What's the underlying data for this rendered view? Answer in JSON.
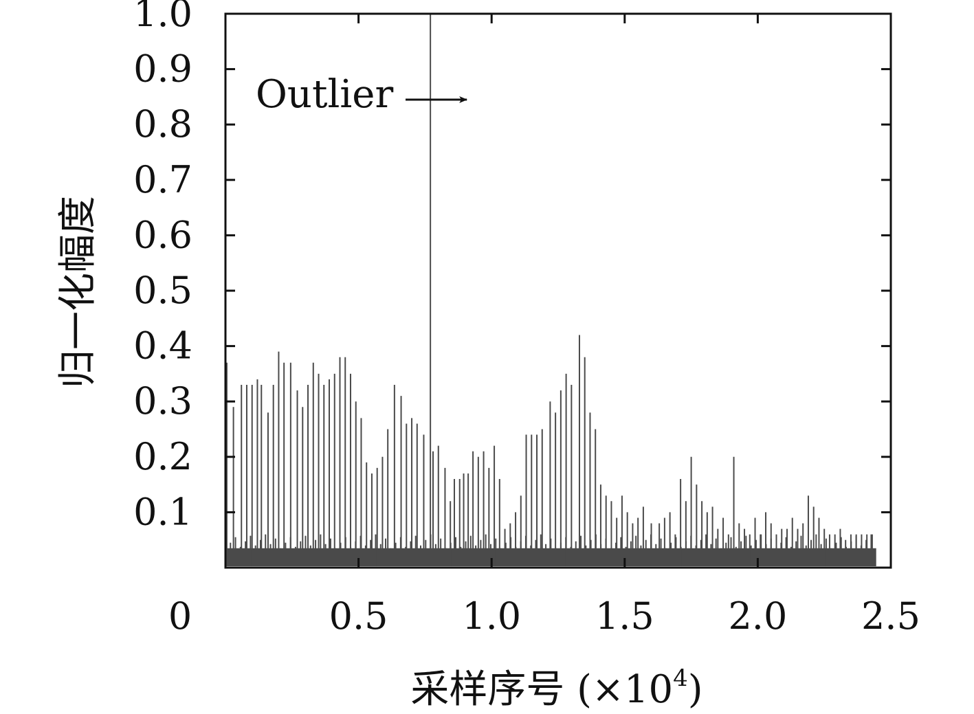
{
  "chart_data": {
    "type": "line",
    "title": "",
    "xlabel": "采样序号 (×10",
    "xlabel_exp": "4",
    "xlabel_close": ")",
    "ylabel": "归一化幅度",
    "xlim": [
      0,
      2.5
    ],
    "ylim": [
      0,
      1.0
    ],
    "x_ticks": [
      0,
      0.5,
      1.0,
      1.5,
      2.0,
      2.5
    ],
    "x_tick_labels": [
      "0",
      "0.5",
      "1.0",
      "1.5",
      "2.0",
      "2.5"
    ],
    "y_ticks": [
      0.1,
      0.2,
      0.3,
      0.4,
      0.5,
      0.6,
      0.7,
      0.8,
      0.9,
      1.0
    ],
    "y_tick_labels": [
      "0.1",
      "0.2",
      "0.3",
      "0.4",
      "0.5",
      "0.6",
      "0.7",
      "0.8",
      "0.9",
      "1.0"
    ],
    "grid": false,
    "line_color": "#4a4a4a",
    "baseline_band": [
      0.0,
      0.035
    ],
    "data_x_end": 2.445,
    "annotation": {
      "text": "Outlier",
      "x": 0.912,
      "y": 0.85
    },
    "series": [
      {
        "x": [
          0.005,
          0.03,
          0.06,
          0.08,
          0.1,
          0.12,
          0.135,
          0.16,
          0.18,
          0.2,
          0.22,
          0.245,
          0.27,
          0.29,
          0.31,
          0.33,
          0.35,
          0.37,
          0.39,
          0.41,
          0.43,
          0.45,
          0.47,
          0.49,
          0.51,
          0.53,
          0.55,
          0.57,
          0.59,
          0.61,
          0.635,
          0.66,
          0.68,
          0.7,
          0.72,
          0.745,
          0.77,
          0.78,
          0.8,
          0.825,
          0.845,
          0.86,
          0.88,
          0.895,
          0.912,
          0.93,
          0.95,
          0.97,
          0.99,
          1.01,
          1.03,
          1.05,
          1.07,
          1.09,
          1.11,
          1.13,
          1.15,
          1.17,
          1.19,
          1.22,
          1.24,
          1.26,
          1.28,
          1.3,
          1.33,
          1.35,
          1.37,
          1.39,
          1.41,
          1.43,
          1.45,
          1.47,
          1.49,
          1.51,
          1.53,
          1.55,
          1.57,
          1.6,
          1.63,
          1.65,
          1.67,
          1.69,
          1.71,
          1.73,
          1.75,
          1.77,
          1.79,
          1.81,
          1.83,
          1.85,
          1.87,
          1.89,
          1.91,
          1.93,
          1.95,
          1.97,
          1.99,
          2.01,
          2.03,
          2.05,
          2.07,
          2.09,
          2.11,
          2.13,
          2.15,
          2.17,
          2.19,
          2.21,
          2.23,
          2.25,
          2.27,
          2.29,
          2.31,
          2.33,
          2.35,
          2.37,
          2.39,
          2.41,
          2.43
        ],
        "values": [
          0.37,
          0.29,
          0.33,
          0.33,
          0.33,
          0.34,
          0.33,
          0.28,
          0.33,
          0.39,
          0.37,
          0.37,
          0.32,
          0.29,
          0.33,
          0.37,
          0.35,
          0.33,
          0.34,
          0.35,
          0.38,
          0.38,
          0.35,
          0.3,
          0.27,
          0.19,
          0.17,
          0.18,
          0.2,
          0.25,
          0.33,
          0.31,
          0.26,
          0.27,
          0.26,
          0.24,
          1.0,
          0.21,
          0.22,
          0.18,
          0.12,
          0.16,
          0.16,
          0.17,
          0.17,
          0.21,
          0.2,
          0.21,
          0.18,
          0.22,
          0.16,
          0.07,
          0.08,
          0.1,
          0.13,
          0.24,
          0.24,
          0.24,
          0.25,
          0.3,
          0.28,
          0.32,
          0.35,
          0.33,
          0.42,
          0.38,
          0.28,
          0.25,
          0.15,
          0.13,
          0.12,
          0.09,
          0.13,
          0.1,
          0.08,
          0.09,
          0.11,
          0.08,
          0.08,
          0.09,
          0.1,
          0.06,
          0.16,
          0.12,
          0.2,
          0.15,
          0.12,
          0.1,
          0.11,
          0.07,
          0.09,
          0.06,
          0.2,
          0.08,
          0.07,
          0.06,
          0.09,
          0.06,
          0.1,
          0.08,
          0.06,
          0.07,
          0.07,
          0.09,
          0.07,
          0.08,
          0.13,
          0.11,
          0.09,
          0.07,
          0.06,
          0.06,
          0.07,
          0.05,
          0.06,
          0.06,
          0.06,
          0.06,
          0.06
        ]
      }
    ]
  }
}
